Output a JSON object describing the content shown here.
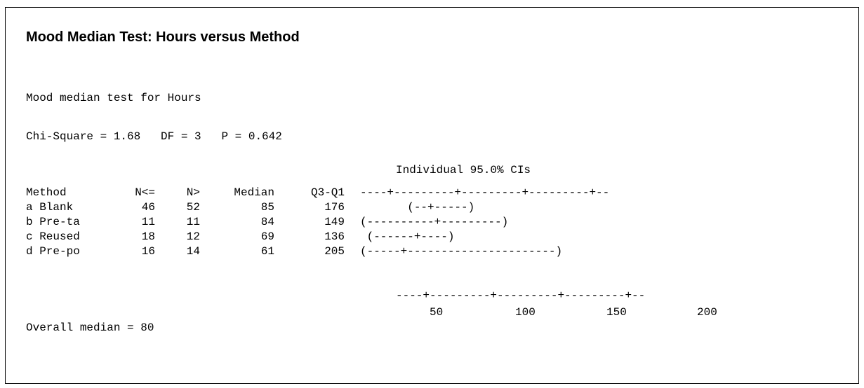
{
  "title": "Mood Median Test: Hours versus Method",
  "subtitle": "Mood median test for Hours",
  "stats_line": "Chi-Square = 1.68   DF = 3   P = 0.642",
  "ci_header": "Individual 95.0% CIs",
  "columns": {
    "method": "Method",
    "n_le": "N<=",
    "n_gt": "N>",
    "median": "Median",
    "q3q1": "Q3-Q1",
    "axis_top": "----+---------+---------+---------+--"
  },
  "rows": [
    {
      "method": "a Blank",
      "n_le": "46",
      "n_gt": "52",
      "median": "85",
      "q3q1": "176",
      "ci": "       (--+-----)"
    },
    {
      "method": "b Pre-ta",
      "n_le": "11",
      "n_gt": "11",
      "median": "84",
      "q3q1": "149",
      "ci": "(----------+---------)"
    },
    {
      "method": "c Reused",
      "n_le": "18",
      "n_gt": "12",
      "median": "69",
      "q3q1": "136",
      "ci": " (------+----)"
    },
    {
      "method": "d Pre-po",
      "n_le": "16",
      "n_gt": "14",
      "median": "61",
      "q3q1": "205",
      "ci": "(-----+----------------------)"
    }
  ],
  "axis_bottom": "----+---------+---------+---------+--",
  "tick_labels": [
    "50",
    "100",
    "150",
    "200"
  ],
  "overall_median": "Overall median = 80"
}
